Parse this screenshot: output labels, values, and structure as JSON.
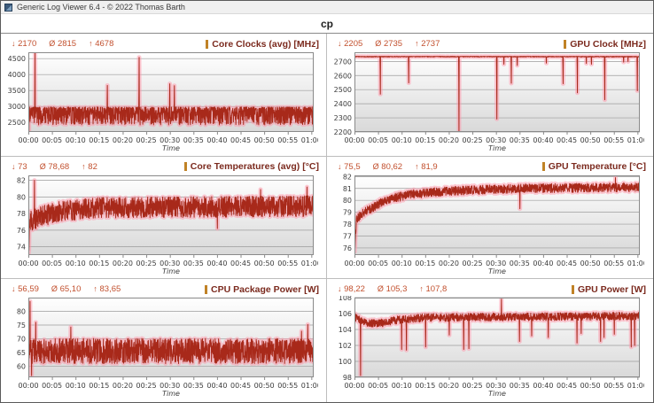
{
  "window": {
    "title": "Generic Log Viewer 6.4 - © 2022 Thomas Barth",
    "header": "cp"
  },
  "chart_data": {
    "type": "line",
    "stat_symbols": {
      "min": "↓",
      "avg": "Ø",
      "max": "↑"
    },
    "colors": {
      "line": "#a8291a",
      "halo": "rgba(255,150,170,0.5)",
      "grid": "#9c9c9c",
      "axis_text": "#3c3c3c",
      "plot_bg_top": "#ffffff",
      "plot_bg_bottom": "#d9d9d9",
      "border": "#8a8a8a",
      "title": "#7b2a1e",
      "stats": "#c2502e",
      "marker": "#c08226"
    },
    "x_axis": {
      "title": "Time",
      "labels": [
        "00:00",
        "00:05",
        "00:10",
        "00:15",
        "00:20",
        "00:25",
        "00:30",
        "00:35",
        "00:40",
        "00:45",
        "00:50",
        "00:55",
        "01:00"
      ],
      "seconds": [
        0,
        300,
        600,
        900,
        1200,
        1500,
        1800,
        2100,
        2400,
        2700,
        3000,
        3300,
        3600
      ],
      "duration_sec": 3630
    },
    "charts": [
      {
        "title": "Core Clocks (avg) [MHz]",
        "stat_min": "2170",
        "stat_avg": "2815",
        "stat_max": "4678",
        "ylim": [
          2200,
          4700
        ],
        "yticks": [
          2500,
          3000,
          3500,
          4000,
          4500
        ],
        "profile": [
          [
            0,
            2980
          ],
          [
            3630,
            2980
          ]
        ],
        "noise": 560,
        "noise_mode": "down",
        "spikes": [
          [
            8,
            2170
          ],
          [
            85,
            4678
          ],
          [
            1005,
            3660
          ],
          [
            1410,
            4540
          ],
          [
            1800,
            3710
          ],
          [
            1858,
            3650
          ]
        ]
      },
      {
        "title": "GPU Clock [MHz]",
        "stat_min": "2205",
        "stat_avg": "2735",
        "stat_max": "2737",
        "ylim": [
          2200,
          2765
        ],
        "yticks": [
          2200,
          2300,
          2400,
          2500,
          2600,
          2700
        ],
        "profile": [
          [
            0,
            2736
          ],
          [
            3630,
            2736
          ]
        ],
        "noise": 5,
        "noise_mode": "down",
        "spikes": [
          [
            330,
            2468
          ],
          [
            690,
            2548
          ],
          [
            1330,
            2205
          ],
          [
            1812,
            2292
          ],
          [
            1900,
            2680
          ],
          [
            1995,
            2545
          ],
          [
            2070,
            2672
          ],
          [
            2440,
            2688
          ],
          [
            2655,
            2542
          ],
          [
            2835,
            2478
          ],
          [
            2950,
            2686
          ],
          [
            3015,
            2680
          ],
          [
            3185,
            2428
          ],
          [
            3425,
            2695
          ],
          [
            3480,
            2700
          ],
          [
            3598,
            2492
          ]
        ]
      },
      {
        "title": "Core Temperatures (avg) [°C]",
        "stat_min": "73",
        "stat_avg": "78,68",
        "stat_max": "82",
        "ylim": [
          73,
          82.6
        ],
        "yticks": [
          74,
          76,
          78,
          80,
          82
        ],
        "profile": [
          [
            0,
            73.6
          ],
          [
            25,
            77.0
          ],
          [
            150,
            77.6
          ],
          [
            420,
            78.3
          ],
          [
            900,
            78.7
          ],
          [
            3630,
            78.9
          ]
        ],
        "noise": 1.25,
        "noise_mode": "sym",
        "spikes": [
          [
            3,
            73
          ],
          [
            78,
            82
          ],
          [
            2405,
            76.2
          ],
          [
            2955,
            80.9
          ],
          [
            3545,
            81.2
          ]
        ]
      },
      {
        "title": "GPU Temperature [°C]",
        "stat_min": "75,5",
        "stat_avg": "80,62",
        "stat_max": "81,9",
        "ylim": [
          75.4,
          82.1
        ],
        "yticks": [
          76,
          77,
          78,
          79,
          80,
          81,
          82
        ],
        "profile": [
          [
            0,
            75.5
          ],
          [
            25,
            78.3
          ],
          [
            90,
            78.9
          ],
          [
            210,
            79.3
          ],
          [
            420,
            80.1
          ],
          [
            720,
            80.5
          ],
          [
            1200,
            80.8
          ],
          [
            2100,
            81.0
          ],
          [
            3630,
            81.1
          ]
        ],
        "noise": 0.38,
        "noise_mode": "sym",
        "spikes": [
          [
            2105,
            79.3
          ],
          [
            3320,
            81.9
          ]
        ]
      },
      {
        "title": "CPU Package Power [W]",
        "stat_min": "56,59",
        "stat_avg": "65,10",
        "stat_max": "83,65",
        "ylim": [
          56,
          85
        ],
        "yticks": [
          60,
          65,
          70,
          75,
          80
        ],
        "profile": [
          [
            0,
            65.6
          ],
          [
            3630,
            65.6
          ]
        ],
        "noise": 4.6,
        "noise_mode": "sym",
        "spikes": [
          [
            22,
            83.65
          ],
          [
            40,
            56.59
          ],
          [
            95,
            76
          ],
          [
            540,
            74.3
          ],
          [
            3475,
            72.8
          ],
          [
            3555,
            75.2
          ]
        ]
      },
      {
        "title": "GPU Power [W]",
        "stat_min": "98,22",
        "stat_avg": "105,3",
        "stat_max": "107,8",
        "ylim": [
          98,
          108
        ],
        "yticks": [
          98,
          100,
          102,
          104,
          106,
          108
        ],
        "profile": [
          [
            0,
            105.6
          ],
          [
            90,
            105.1
          ],
          [
            180,
            104.8
          ],
          [
            330,
            104.8
          ],
          [
            540,
            105.2
          ],
          [
            900,
            105.5
          ],
          [
            3630,
            105.7
          ]
        ],
        "noise": 0.5,
        "noise_mode": "sym",
        "spikes": [
          [
            78,
            98.22
          ],
          [
            600,
            101.5
          ],
          [
            662,
            101.4
          ],
          [
            905,
            101.8
          ],
          [
            1205,
            103.3
          ],
          [
            1390,
            101.5
          ],
          [
            1455,
            101.6
          ],
          [
            1870,
            107.8
          ],
          [
            2100,
            102.5
          ],
          [
            2255,
            103.2
          ],
          [
            2465,
            103.0
          ],
          [
            2830,
            102.3
          ],
          [
            2885,
            103.5
          ],
          [
            3130,
            102.5
          ],
          [
            3175,
            103.0
          ],
          [
            3305,
            103.4
          ],
          [
            3520,
            101.8
          ],
          [
            3565,
            102.0
          ]
        ]
      }
    ]
  }
}
